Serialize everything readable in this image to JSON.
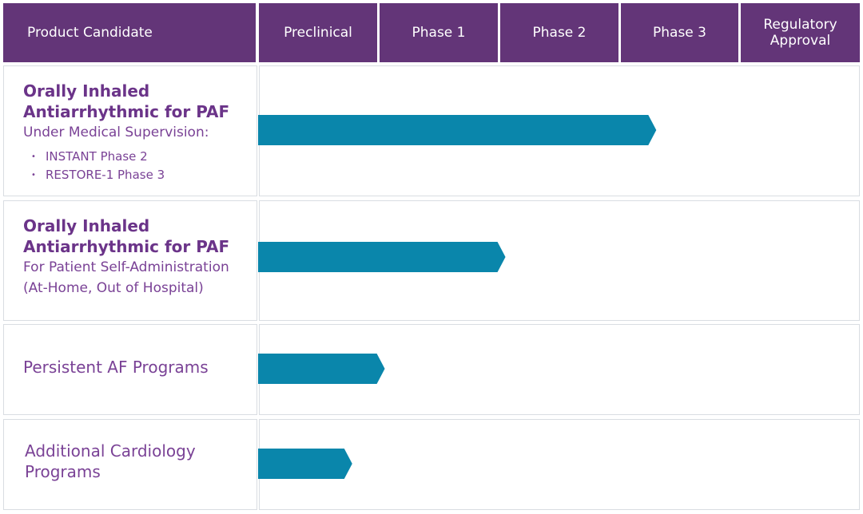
{
  "header": {
    "columns": [
      "Product Candidate",
      "Preclinical",
      "Phase 1",
      "Phase 2",
      "Phase 3"
    ],
    "regulatory_line1": "Regulatory",
    "regulatory_line2": "Approval"
  },
  "rows": [
    {
      "title_line1": "Orally Inhaled",
      "title_line2": "Antiarrhythmic for PAF",
      "subtitle": "Under Medical Supervision:",
      "bullets": [
        "INSTANT Phase 2",
        "RESTORE-1 Phase 3"
      ],
      "progress_stages": 3.3
    },
    {
      "title_line1": "Orally Inhaled",
      "title_line2": "Antiarrhythmic for PAF",
      "subtitle_line1": "For Patient Self-Administration",
      "subtitle_line2": "(At-Home, Out of Hospital)",
      "progress_stages": 2.05
    },
    {
      "label": "Persistent AF Programs",
      "progress_stages": 1.05
    },
    {
      "label_line1": "Additional Cardiology",
      "label_line2": "Programs",
      "progress_stages": 0.78
    }
  ],
  "colors": {
    "header_bg": "#633578",
    "bar": "#0a86ab",
    "text_purple": "#6b3489"
  }
}
